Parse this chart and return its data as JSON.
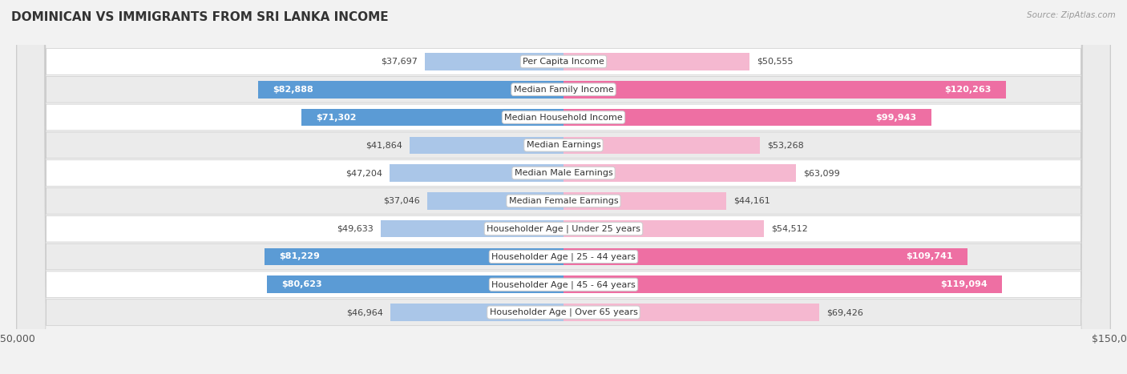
{
  "title": "Dominican vs Immigrants from Sri Lanka Income",
  "source": "Source: ZipAtlas.com",
  "categories": [
    "Per Capita Income",
    "Median Family Income",
    "Median Household Income",
    "Median Earnings",
    "Median Male Earnings",
    "Median Female Earnings",
    "Householder Age | Under 25 years",
    "Householder Age | 25 - 44 years",
    "Householder Age | 45 - 64 years",
    "Householder Age | Over 65 years"
  ],
  "dominican_values": [
    37697,
    82888,
    71302,
    41864,
    47204,
    37046,
    49633,
    81229,
    80623,
    46964
  ],
  "srilanka_values": [
    50555,
    120263,
    99943,
    53268,
    63099,
    44161,
    54512,
    109741,
    119094,
    69426
  ],
  "dominican_labels": [
    "$37,697",
    "$82,888",
    "$71,302",
    "$41,864",
    "$47,204",
    "$37,046",
    "$49,633",
    "$81,229",
    "$80,623",
    "$46,964"
  ],
  "srilanka_labels": [
    "$50,555",
    "$120,263",
    "$99,943",
    "$53,268",
    "$63,099",
    "$44,161",
    "$54,512",
    "$109,741",
    "$119,094",
    "$69,426"
  ],
  "dominican_color_light": "#aac6e8",
  "dominican_color_dark": "#5b9bd5",
  "srilanka_color_light": "#f5b8d0",
  "srilanka_color_dark": "#ee6fa3",
  "dom_dark_threshold": 60000,
  "sri_dark_threshold": 80000,
  "max_value": 150000,
  "bg_color": "#f2f2f2",
  "row_bg_even": "#ffffff",
  "row_bg_odd": "#ebebeb",
  "title_fontsize": 11,
  "label_fontsize": 8,
  "value_fontsize": 8,
  "axis_label_fontsize": 9,
  "legend_fontsize": 9
}
